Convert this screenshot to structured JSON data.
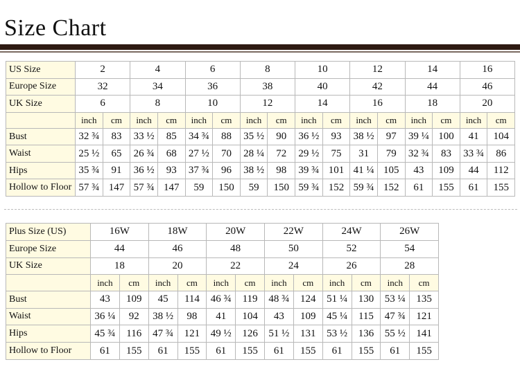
{
  "title": "Size Chart",
  "tables": [
    {
      "size_rows": [
        {
          "label": "US Size",
          "values": [
            "2",
            "4",
            "6",
            "8",
            "10",
            "12",
            "14",
            "16"
          ]
        },
        {
          "label": "Europe Size",
          "values": [
            "32",
            "34",
            "36",
            "38",
            "40",
            "42",
            "44",
            "46"
          ]
        },
        {
          "label": "UK Size",
          "values": [
            "6",
            "8",
            "10",
            "12",
            "14",
            "16",
            "18",
            "20"
          ]
        }
      ],
      "units": [
        "inch",
        "cm"
      ],
      "measure_rows": [
        {
          "label": "Bust",
          "values": [
            [
              "32 ¾",
              "83"
            ],
            [
              "33 ½",
              "85"
            ],
            [
              "34 ¾",
              "88"
            ],
            [
              "35 ½",
              "90"
            ],
            [
              "36 ½",
              "93"
            ],
            [
              "38 ½",
              "97"
            ],
            [
              "39 ¼",
              "100"
            ],
            [
              "41",
              "104"
            ]
          ]
        },
        {
          "label": "Waist",
          "values": [
            [
              "25 ½",
              "65"
            ],
            [
              "26 ¾",
              "68"
            ],
            [
              "27 ½",
              "70"
            ],
            [
              "28 ¼",
              "72"
            ],
            [
              "29 ½",
              "75"
            ],
            [
              "31",
              "79"
            ],
            [
              "32 ¾",
              "83"
            ],
            [
              "33 ¾",
              "86"
            ]
          ]
        },
        {
          "label": "Hips",
          "values": [
            [
              "35 ¾",
              "91"
            ],
            [
              "36 ½",
              "93"
            ],
            [
              "37 ¾",
              "96"
            ],
            [
              "38 ½",
              "98"
            ],
            [
              "39 ¾",
              "101"
            ],
            [
              "41 ¼",
              "105"
            ],
            [
              "43",
              "109"
            ],
            [
              "44",
              "112"
            ]
          ]
        },
        {
          "label": "Hollow to Floor",
          "values": [
            [
              "57 ¾",
              "147"
            ],
            [
              "57 ¾",
              "147"
            ],
            [
              "59",
              "150"
            ],
            [
              "59",
              "150"
            ],
            [
              "59 ¾",
              "152"
            ],
            [
              "59 ¾",
              "152"
            ],
            [
              "61",
              "155"
            ],
            [
              "61",
              "155"
            ]
          ]
        }
      ]
    },
    {
      "size_rows": [
        {
          "label": "Plus Size (US)",
          "values": [
            "16W",
            "18W",
            "20W",
            "22W",
            "24W",
            "26W"
          ]
        },
        {
          "label": "Europe Size",
          "values": [
            "44",
            "46",
            "48",
            "50",
            "52",
            "54"
          ]
        },
        {
          "label": "UK Size",
          "values": [
            "18",
            "20",
            "22",
            "24",
            "26",
            "28"
          ]
        }
      ],
      "units": [
        "inch",
        "cm"
      ],
      "measure_rows": [
        {
          "label": "Bust",
          "values": [
            [
              "43",
              "109"
            ],
            [
              "45",
              "114"
            ],
            [
              "46 ¾",
              "119"
            ],
            [
              "48 ¾",
              "124"
            ],
            [
              "51 ¼",
              "130"
            ],
            [
              "53 ¼",
              "135"
            ]
          ]
        },
        {
          "label": "Waist",
          "values": [
            [
              "36 ¼",
              "92"
            ],
            [
              "38 ½",
              "98"
            ],
            [
              "41",
              "104"
            ],
            [
              "43",
              "109"
            ],
            [
              "45 ¼",
              "115"
            ],
            [
              "47 ¾",
              "121"
            ]
          ]
        },
        {
          "label": "Hips",
          "values": [
            [
              "45 ¾",
              "116"
            ],
            [
              "47 ¾",
              "121"
            ],
            [
              "49 ½",
              "126"
            ],
            [
              "51 ½",
              "131"
            ],
            [
              "53 ½",
              "136"
            ],
            [
              "55 ½",
              "141"
            ]
          ]
        },
        {
          "label": "Hollow to Floor",
          "values": [
            [
              "61",
              "155"
            ],
            [
              "61",
              "155"
            ],
            [
              "61",
              "155"
            ],
            [
              "61",
              "155"
            ],
            [
              "61",
              "155"
            ],
            [
              "61",
              "155"
            ]
          ]
        }
      ]
    }
  ]
}
